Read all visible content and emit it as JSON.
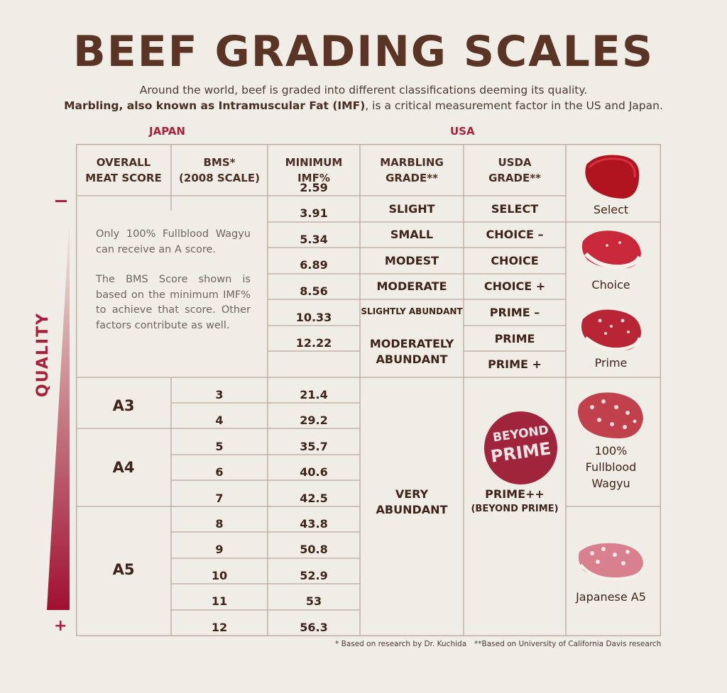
{
  "title": "BEEF GRADING SCALES",
  "subtitle_line1": "Around the world, beef is graded into different classifications deeming its quality.",
  "subtitle_line2_bold": "Marbling, also known as Intramuscular Fat (IMF)",
  "subtitle_line2_rest": ", is a critical measurement factor in the US and Japan.",
  "regions": {
    "japan": "JAPAN",
    "usa": "USA"
  },
  "headers": {
    "overall": [
      "OVERALL",
      "MEAT SCORE"
    ],
    "bms": [
      "BMS*",
      "(2008 SCALE)"
    ],
    "imf": [
      "MINIMUM",
      "IMF%"
    ],
    "marbling": [
      "MARBLING",
      "GRADE**"
    ],
    "usda": [
      "USDA",
      "GRADE**"
    ]
  },
  "note": {
    "p1": "Only 100% Fullblood Wagyu can receive an A score.",
    "p2": "The BMS Score shown is based on the minimum IMF% to achieve that score. Other factors contribute as well."
  },
  "imf_values": [
    "2.59",
    "3.91",
    "5.34",
    "6.89",
    "8.56",
    "10.33",
    "12.22",
    "21.4",
    "29.2",
    "35.7",
    "40.6",
    "42.5",
    "43.8",
    "50.8",
    "52.9",
    "53",
    "56.3"
  ],
  "bms_values": [
    "3",
    "4",
    "5",
    "6",
    "7",
    "8",
    "9",
    "10",
    "11",
    "12"
  ],
  "overall_scores": [
    "A3",
    "A4",
    "A5"
  ],
  "marbling": [
    "SLIGHT",
    "SMALL",
    "MODEST",
    "MODERATE",
    "SLIGHTLY ABUNDANT",
    "MODERATELY",
    "ABUNDANT",
    "VERY",
    "ABUNDANT"
  ],
  "usda": [
    "SELECT",
    "CHOICE –",
    "CHOICE",
    "CHOICE +",
    "PRIME –",
    "PRIME",
    "PRIME +",
    "PRIME++",
    "(BEYOND PRIME)"
  ],
  "badge": [
    "BEYOND",
    "PRIME"
  ],
  "beef_labels": {
    "select": "Select",
    "choice": "Choice",
    "prime": "Prime",
    "wagyu": [
      "100%",
      "Fullblood",
      "Wagyu"
    ],
    "a5": "Japanese A5"
  },
  "quality": {
    "label": "QUALITY",
    "minus": "–",
    "plus": "+"
  },
  "footnotes": {
    "f1": "* Based on research by Dr. Kuchida",
    "f2": "**Based on University of California Davis research"
  },
  "colors": {
    "accent": "#a8203a",
    "text": "#4a2e22",
    "grid": "#b9a79d",
    "background": "#f0ece6"
  }
}
